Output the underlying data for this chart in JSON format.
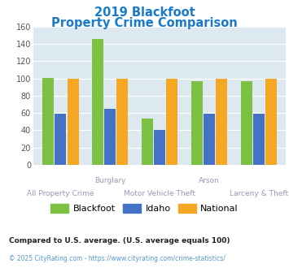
{
  "title_line1": "2019 Blackfoot",
  "title_line2": "Property Crime Comparison",
  "title_color": "#1a7acc",
  "categories": [
    "All Property Crime",
    "Burglary",
    "Motor Vehicle Theft",
    "Arson",
    "Larceny & Theft"
  ],
  "cat_labels_row1": [
    "",
    "Burglary",
    "",
    "Arson",
    ""
  ],
  "cat_labels_row2": [
    "All Property Crime",
    "",
    "Motor Vehicle Theft",
    "",
    "Larceny & Theft"
  ],
  "blackfoot": [
    101,
    146,
    54,
    97,
    97
  ],
  "idaho": [
    59,
    65,
    40,
    59,
    59
  ],
  "national": [
    100,
    100,
    100,
    100,
    100
  ],
  "blackfoot_color": "#7dc142",
  "idaho_color": "#4472c4",
  "national_color": "#f5a623",
  "plot_bg_color": "#dce9f0",
  "ylim": [
    0,
    160
  ],
  "yticks": [
    0,
    20,
    40,
    60,
    80,
    100,
    120,
    140,
    160
  ],
  "legend_labels": [
    "Blackfoot",
    "Idaho",
    "National"
  ],
  "footnote1": "Compared to U.S. average. (U.S. average equals 100)",
  "footnote2": "© 2025 CityRating.com - https://www.cityrating.com/crime-statistics/",
  "footnote1_color": "#222222",
  "footnote2_color": "#5599cc",
  "label_color": "#9999bb",
  "bar_width": 0.25
}
